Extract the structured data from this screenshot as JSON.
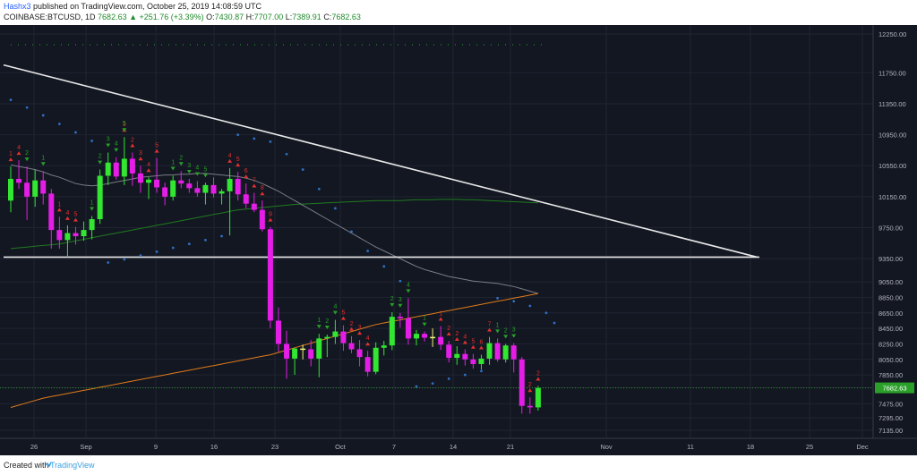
{
  "header": {
    "author": "Hashx3",
    "published_text": "published on TradingView.com, October 25, 2019 14:08:59 UTC",
    "symbol": "COINBASE:BTCUSD, 1D",
    "last": "7682.63",
    "change": "▲ +251.76 (+3.39%)",
    "open_label": "O:",
    "open": "7430.87",
    "high_label": "H:",
    "high": "7707.00",
    "low_label": "L:",
    "low": "7389.91",
    "close_label": "C:",
    "close": "7682.63"
  },
  "footer": {
    "created_with": "Created with",
    "brand": "TradingView"
  },
  "colors": {
    "background": "#131722",
    "up_candle": "#32e632",
    "down_candle": "#e41ee6",
    "neutral_candle": "#f2f57a",
    "trendline": "#e8e8e8",
    "sma_gray": "#7a7d85",
    "sma_green": "#1f7a1f",
    "sma_orange": "#e07a1a",
    "sar": "#2f6fbf",
    "count_red": "#e03030",
    "count_green": "#28a028",
    "price_label": "#2aa02a"
  },
  "chart_data": {
    "type": "candlestick",
    "title": "",
    "price_axis": {
      "ticks": [
        "12250.00",
        "11750.00",
        "11350.00",
        "10950.00",
        "10550.00",
        "10150.00",
        "9750.00",
        "9350.00",
        "9050.00",
        "8850.00",
        "8650.00",
        "8450.00",
        "8250.00",
        "8050.00",
        "7850.00",
        "7682.63",
        "7475.00",
        "7295.00",
        "7135.00"
      ],
      "current_price": "7682.63"
    },
    "time_axis": {
      "ticks": [
        "26",
        "Sep",
        "9",
        "16",
        "23",
        "Oct",
        "7",
        "14",
        "21",
        "Nov",
        "11",
        "18",
        "25",
        "Dec"
      ]
    },
    "candles": [
      {
        "o": 10100,
        "h": 10540,
        "l": 9950,
        "c": 10380
      },
      {
        "o": 10380,
        "h": 10620,
        "l": 10250,
        "c": 10330
      },
      {
        "o": 10330,
        "h": 10540,
        "l": 9850,
        "c": 10150
      },
      {
        "o": 10150,
        "h": 10500,
        "l": 10020,
        "c": 10360
      },
      {
        "o": 10360,
        "h": 10480,
        "l": 10050,
        "c": 10190
      },
      {
        "o": 10190,
        "h": 10250,
        "l": 9480,
        "c": 9720
      },
      {
        "o": 9720,
        "h": 9890,
        "l": 9480,
        "c": 9590
      },
      {
        "o": 9590,
        "h": 9780,
        "l": 9370,
        "c": 9680
      },
      {
        "o": 9680,
        "h": 9760,
        "l": 9530,
        "c": 9640
      },
      {
        "o": 9640,
        "h": 9830,
        "l": 9580,
        "c": 9720
      },
      {
        "o": 9720,
        "h": 9900,
        "l": 9600,
        "c": 9860
      },
      {
        "o": 9860,
        "h": 10500,
        "l": 9800,
        "c": 10420
      },
      {
        "o": 10420,
        "h": 10720,
        "l": 10300,
        "c": 10590
      },
      {
        "o": 10590,
        "h": 10660,
        "l": 10370,
        "c": 10410
      },
      {
        "o": 10410,
        "h": 10920,
        "l": 10300,
        "c": 10640
      },
      {
        "o": 10640,
        "h": 10720,
        "l": 10290,
        "c": 10450
      },
      {
        "o": 10450,
        "h": 10550,
        "l": 10200,
        "c": 10330
      },
      {
        "o": 10330,
        "h": 10400,
        "l": 10120,
        "c": 10370
      },
      {
        "o": 10370,
        "h": 10650,
        "l": 10200,
        "c": 10270
      },
      {
        "o": 10270,
        "h": 10330,
        "l": 10040,
        "c": 10150
      },
      {
        "o": 10150,
        "h": 10420,
        "l": 10100,
        "c": 10360
      },
      {
        "o": 10360,
        "h": 10480,
        "l": 10260,
        "c": 10320
      },
      {
        "o": 10320,
        "h": 10380,
        "l": 10200,
        "c": 10260
      },
      {
        "o": 10260,
        "h": 10350,
        "l": 10150,
        "c": 10200
      },
      {
        "o": 10200,
        "h": 10330,
        "l": 10050,
        "c": 10300
      },
      {
        "o": 10300,
        "h": 10400,
        "l": 10140,
        "c": 10190
      },
      {
        "o": 10190,
        "h": 10250,
        "l": 10050,
        "c": 10220
      },
      {
        "o": 10220,
        "h": 10520,
        "l": 9650,
        "c": 10380
      },
      {
        "o": 10380,
        "h": 10470,
        "l": 10100,
        "c": 10180
      },
      {
        "o": 10180,
        "h": 10320,
        "l": 10000,
        "c": 10060
      },
      {
        "o": 10060,
        "h": 10200,
        "l": 9950,
        "c": 9980
      },
      {
        "o": 9980,
        "h": 10100,
        "l": 9700,
        "c": 9730
      },
      {
        "o": 9730,
        "h": 9760,
        "l": 8450,
        "c": 8550
      },
      {
        "o": 8550,
        "h": 8720,
        "l": 8150,
        "c": 8250
      },
      {
        "o": 8250,
        "h": 8420,
        "l": 7800,
        "c": 8060
      },
      {
        "o": 8060,
        "h": 8200,
        "l": 7850,
        "c": 8190
      },
      {
        "o": 8190,
        "h": 8240,
        "l": 8050,
        "c": 8180
      },
      {
        "o": 8180,
        "h": 8300,
        "l": 7960,
        "c": 8060
      },
      {
        "o": 8060,
        "h": 8380,
        "l": 7820,
        "c": 8320
      },
      {
        "o": 8320,
        "h": 8370,
        "l": 8080,
        "c": 8340
      },
      {
        "o": 8340,
        "h": 8560,
        "l": 8250,
        "c": 8410
      },
      {
        "o": 8410,
        "h": 8490,
        "l": 8160,
        "c": 8260
      },
      {
        "o": 8260,
        "h": 8350,
        "l": 8130,
        "c": 8180
      },
      {
        "o": 8180,
        "h": 8300,
        "l": 7960,
        "c": 8080
      },
      {
        "o": 8080,
        "h": 8160,
        "l": 7830,
        "c": 7890
      },
      {
        "o": 7890,
        "h": 8270,
        "l": 7860,
        "c": 8200
      },
      {
        "o": 8200,
        "h": 8290,
        "l": 8100,
        "c": 8230
      },
      {
        "o": 8230,
        "h": 8660,
        "l": 8170,
        "c": 8600
      },
      {
        "o": 8600,
        "h": 8650,
        "l": 8460,
        "c": 8580
      },
      {
        "o": 8580,
        "h": 8840,
        "l": 8240,
        "c": 8320
      },
      {
        "o": 8320,
        "h": 8430,
        "l": 8230,
        "c": 8380
      },
      {
        "o": 8380,
        "h": 8410,
        "l": 8280,
        "c": 8330
      },
      {
        "o": 8330,
        "h": 8450,
        "l": 8210,
        "c": 8340
      },
      {
        "o": 8340,
        "h": 8480,
        "l": 8170,
        "c": 8240
      },
      {
        "o": 8240,
        "h": 8290,
        "l": 8010,
        "c": 8070
      },
      {
        "o": 8070,
        "h": 8220,
        "l": 7980,
        "c": 8120
      },
      {
        "o": 8120,
        "h": 8180,
        "l": 7970,
        "c": 8050
      },
      {
        "o": 8050,
        "h": 8120,
        "l": 7930,
        "c": 7990
      },
      {
        "o": 7990,
        "h": 8110,
        "l": 7920,
        "c": 8060
      },
      {
        "o": 8060,
        "h": 8340,
        "l": 7980,
        "c": 8260
      },
      {
        "o": 8260,
        "h": 8320,
        "l": 8020,
        "c": 8050
      },
      {
        "o": 8050,
        "h": 8250,
        "l": 8010,
        "c": 8230
      },
      {
        "o": 8230,
        "h": 8260,
        "l": 7880,
        "c": 8050
      },
      {
        "o": 8050,
        "h": 8080,
        "l": 7350,
        "c": 7450
      },
      {
        "o": 7450,
        "h": 7560,
        "l": 7350,
        "c": 7430
      },
      {
        "o": 7430,
        "h": 7707,
        "l": 7389,
        "c": 7682
      }
    ],
    "sma_fast": [
      10560,
      10540,
      10520,
      10500,
      10470,
      10430,
      10400,
      10360,
      10320,
      10300,
      10290,
      10300,
      10320,
      10340,
      10360,
      10380,
      10400,
      10410,
      10420,
      10430,
      10430,
      10440,
      10440,
      10450,
      10450,
      10440,
      10430,
      10420,
      10410,
      10390,
      10360,
      10320,
      10270,
      10220,
      10160,
      10100,
      10040,
      9980,
      9920,
      9860,
      9800,
      9740,
      9680,
      9620,
      9560,
      9500,
      9450,
      9400,
      9350,
      9300,
      9250,
      9210,
      9180,
      9150,
      9120,
      9100,
      9080,
      9060,
      9050,
      9040,
      9030,
      9010,
      8990,
      8960,
      8930,
      8900
    ],
    "sma_mid": [
      9480,
      9490,
      9500,
      9510,
      9520,
      9530,
      9540,
      9560,
      9580,
      9600,
      9620,
      9640,
      9660,
      9680,
      9700,
      9720,
      9740,
      9760,
      9780,
      9800,
      9820,
      9840,
      9860,
      9880,
      9900,
      9920,
      9940,
      9960,
      9980,
      9990,
      10000,
      10010,
      10020,
      10030,
      10040,
      10050,
      10055,
      10060,
      10065,
      10070,
      10075,
      10080,
      10085,
      10090,
      10095,
      10100,
      10100,
      10100,
      10100,
      10105,
      10110,
      10110,
      10110,
      10115,
      10115,
      10115,
      10110,
      10110,
      10105,
      10100,
      10095,
      10090,
      10085,
      10080,
      10075,
      10070
    ],
    "sma_slow": [
      7430,
      7460,
      7490,
      7520,
      7550,
      7570,
      7590,
      7610,
      7630,
      7650,
      7670,
      7690,
      7710,
      7730,
      7750,
      7770,
      7790,
      7810,
      7830,
      7850,
      7870,
      7890,
      7910,
      7930,
      7950,
      7970,
      7990,
      8010,
      8030,
      8050,
      8070,
      8090,
      8110,
      8140,
      8170,
      8200,
      8230,
      8260,
      8290,
      8320,
      8350,
      8380,
      8410,
      8440,
      8470,
      8500,
      8520,
      8540,
      8560,
      8580,
      8600,
      8620,
      8640,
      8660,
      8680,
      8700,
      8720,
      8740,
      8760,
      8780,
      8800,
      8820,
      8840,
      8860,
      8880,
      8900
    ],
    "trendline": [
      {
        "bar": 0,
        "price": 11850
      },
      {
        "bar": 92,
        "price": 9370
      }
    ],
    "horizontal_level": 9370,
    "sar": [
      {
        "bar": 0,
        "price": 11400
      },
      {
        "bar": 2,
        "price": 11300
      },
      {
        "bar": 4,
        "price": 11200
      },
      {
        "bar": 6,
        "price": 11090
      },
      {
        "bar": 8,
        "price": 10980
      },
      {
        "bar": 10,
        "price": 10870
      },
      {
        "bar": 12,
        "price": 9300
      },
      {
        "bar": 14,
        "price": 9340
      },
      {
        "bar": 16,
        "price": 9390
      },
      {
        "bar": 18,
        "price": 9440
      },
      {
        "bar": 20,
        "price": 9490
      },
      {
        "bar": 22,
        "price": 9540
      },
      {
        "bar": 24,
        "price": 9590
      },
      {
        "bar": 26,
        "price": 9640
      },
      {
        "bar": 28,
        "price": 10950
      },
      {
        "bar": 30,
        "price": 10900
      },
      {
        "bar": 32,
        "price": 10860
      },
      {
        "bar": 34,
        "price": 10700
      },
      {
        "bar": 36,
        "price": 10500
      },
      {
        "bar": 38,
        "price": 10250
      },
      {
        "bar": 40,
        "price": 10000
      },
      {
        "bar": 42,
        "price": 9700
      },
      {
        "bar": 44,
        "price": 9450
      },
      {
        "bar": 46,
        "price": 9250
      },
      {
        "bar": 48,
        "price": 9060
      },
      {
        "bar": 50,
        "price": 7700
      },
      {
        "bar": 52,
        "price": 7740
      },
      {
        "bar": 54,
        "price": 7800
      },
      {
        "bar": 56,
        "price": 7850
      },
      {
        "bar": 58,
        "price": 7900
      },
      {
        "bar": 60,
        "price": 8840
      },
      {
        "bar": 62,
        "price": 8800
      },
      {
        "bar": 64,
        "price": 8740
      },
      {
        "bar": 66,
        "price": 8650
      },
      {
        "bar": 67,
        "price": 8520
      }
    ],
    "counts_red": [
      {
        "bar": 0,
        "label": "1"
      },
      {
        "bar": 1,
        "label": "4"
      },
      {
        "bar": 6,
        "label": "1"
      },
      {
        "bar": 7,
        "label": "4"
      },
      {
        "bar": 8,
        "label": "5"
      },
      {
        "bar": 14,
        "label": "1"
      },
      {
        "bar": 15,
        "label": "2"
      },
      {
        "bar": 16,
        "label": "3"
      },
      {
        "bar": 17,
        "label": "4"
      },
      {
        "bar": 18,
        "label": "5"
      },
      {
        "bar": 27,
        "label": "4"
      },
      {
        "bar": 28,
        "label": "5"
      },
      {
        "bar": 29,
        "label": "6"
      },
      {
        "bar": 30,
        "label": "7"
      },
      {
        "bar": 31,
        "label": "8"
      },
      {
        "bar": 32,
        "label": "9"
      },
      {
        "bar": 41,
        "label": "5"
      },
      {
        "bar": 42,
        "label": "2"
      },
      {
        "bar": 43,
        "label": "3"
      },
      {
        "bar": 44,
        "label": "4"
      },
      {
        "bar": 53,
        "label": "1"
      },
      {
        "bar": 54,
        "label": "2"
      },
      {
        "bar": 55,
        "label": "2"
      },
      {
        "bar": 56,
        "label": "4"
      },
      {
        "bar": 57,
        "label": "5"
      },
      {
        "bar": 58,
        "label": "6"
      },
      {
        "bar": 59,
        "label": "7"
      },
      {
        "bar": 64,
        "label": "2"
      },
      {
        "bar": 65,
        "label": "2"
      },
      {
        "bar": 66,
        "label": "3"
      }
    ],
    "counts_green": [
      {
        "bar": 2,
        "label": "2"
      },
      {
        "bar": 4,
        "label": "1"
      },
      {
        "bar": 10,
        "label": "1"
      },
      {
        "bar": 11,
        "label": "2"
      },
      {
        "bar": 12,
        "label": "3"
      },
      {
        "bar": 13,
        "label": "4"
      },
      {
        "bar": 14,
        "label": "5"
      },
      {
        "bar": 20,
        "label": "1"
      },
      {
        "bar": 21,
        "label": "2"
      },
      {
        "bar": 22,
        "label": "3"
      },
      {
        "bar": 23,
        "label": "4"
      },
      {
        "bar": 24,
        "label": "5"
      },
      {
        "bar": 38,
        "label": "1"
      },
      {
        "bar": 39,
        "label": "2"
      },
      {
        "bar": 40,
        "label": "4"
      },
      {
        "bar": 47,
        "label": "2"
      },
      {
        "bar": 48,
        "label": "3"
      },
      {
        "bar": 49,
        "label": "4"
      },
      {
        "bar": 51,
        "label": "1"
      },
      {
        "bar": 60,
        "label": "1"
      },
      {
        "bar": 61,
        "label": "2"
      },
      {
        "bar": 62,
        "label": "3"
      }
    ]
  }
}
